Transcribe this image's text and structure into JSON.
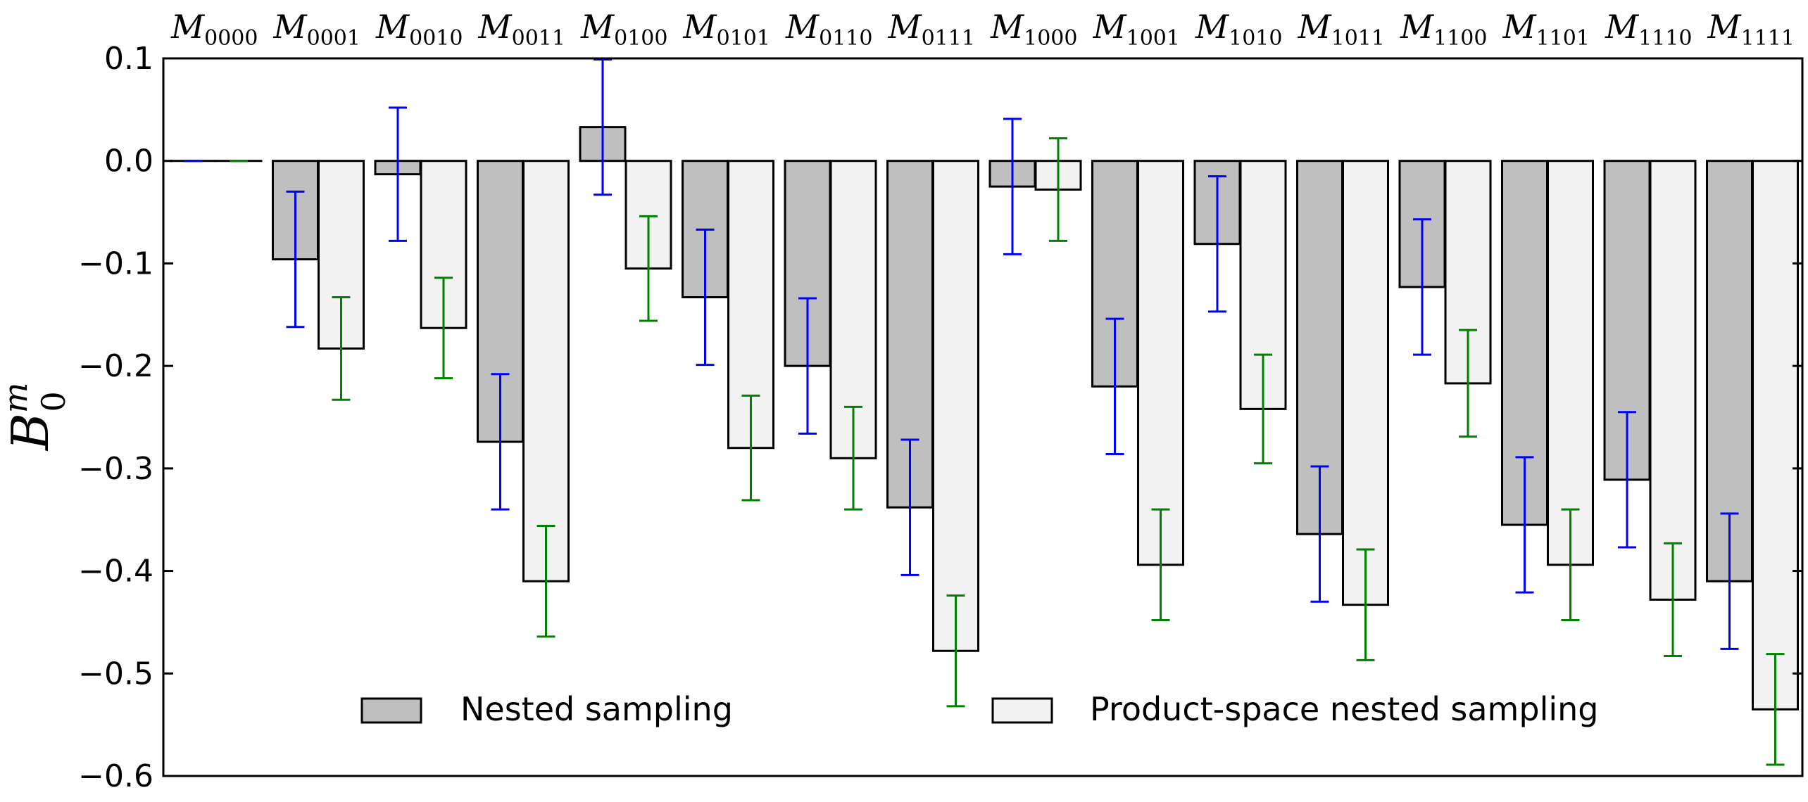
{
  "chart_data": {
    "type": "bar",
    "title": "",
    "xlabel": "",
    "ylabel": "B",
    "ylabel_sup": "m",
    "ylabel_sub": "0",
    "ylim": [
      -0.6,
      0.1
    ],
    "yticks": [
      0.1,
      0.0,
      -0.1,
      -0.2,
      -0.3,
      -0.4,
      -0.5,
      -0.6
    ],
    "ytick_labels": [
      "0.1",
      "0.0",
      "−0.1",
      "−0.2",
      "−0.3",
      "−0.4",
      "−0.5",
      "−0.6"
    ],
    "category_prefix": "M",
    "categories": [
      "0000",
      "0001",
      "0010",
      "0011",
      "0100",
      "0101",
      "0110",
      "0111",
      "1000",
      "1001",
      "1010",
      "1011",
      "1100",
      "1101",
      "1110",
      "1111"
    ],
    "grid": false,
    "legend_position": "bottom",
    "series": [
      {
        "name": "Nested sampling",
        "fill": "#bfbfbf",
        "error_color": "#0000ff",
        "values": [
          0.0,
          -0.096,
          -0.013,
          -0.274,
          0.033,
          -0.133,
          -0.2,
          -0.338,
          -0.025,
          -0.22,
          -0.081,
          -0.364,
          -0.123,
          -0.355,
          -0.311,
          -0.41
        ],
        "errors": [
          0.0,
          0.066,
          0.065,
          0.066,
          0.066,
          0.066,
          0.066,
          0.066,
          0.066,
          0.066,
          0.066,
          0.066,
          0.066,
          0.066,
          0.066,
          0.066
        ]
      },
      {
        "name": "Product-space nested sampling",
        "fill": "#f2f2f2",
        "error_color": "#008000",
        "values": [
          0.0,
          -0.183,
          -0.163,
          -0.41,
          -0.105,
          -0.28,
          -0.29,
          -0.478,
          -0.028,
          -0.394,
          -0.242,
          -0.433,
          -0.217,
          -0.394,
          -0.428,
          -0.535
        ],
        "errors": [
          0.0,
          0.05,
          0.049,
          0.054,
          0.051,
          0.051,
          0.05,
          0.054,
          0.05,
          0.054,
          0.053,
          0.054,
          0.052,
          0.054,
          0.055,
          0.054
        ]
      }
    ]
  }
}
